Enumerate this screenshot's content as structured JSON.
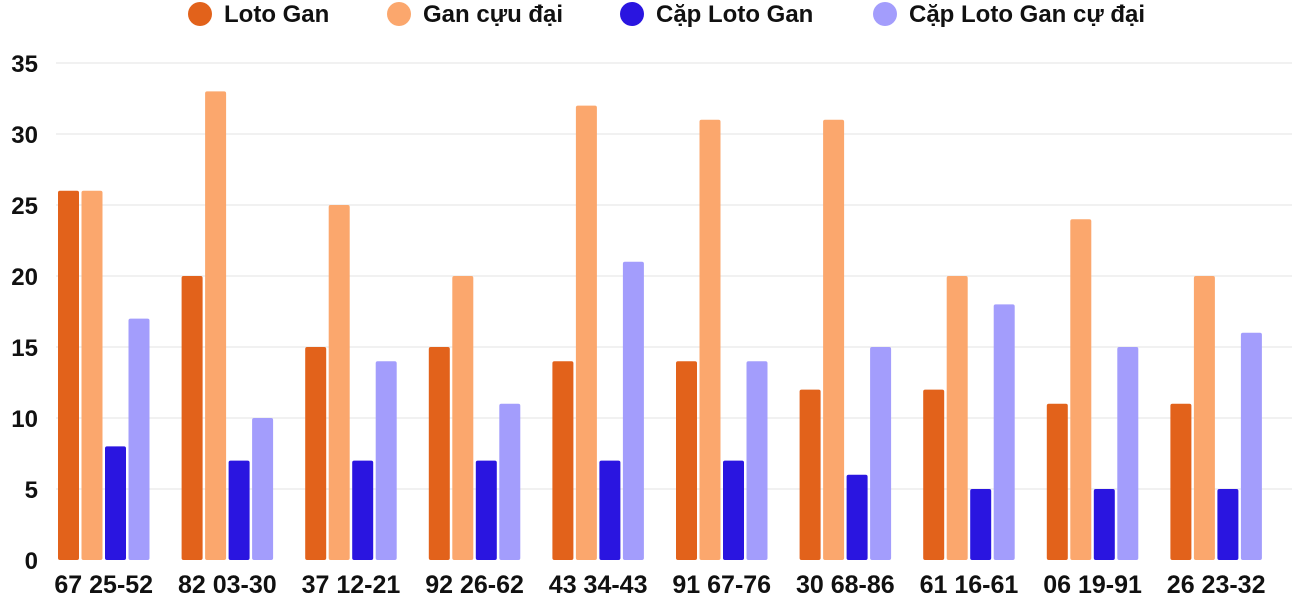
{
  "chart_data": {
    "type": "bar",
    "title": "",
    "xlabel": "",
    "ylabel": "",
    "ylim": [
      0,
      35
    ],
    "yticks": [
      0,
      5,
      10,
      15,
      20,
      25,
      30,
      35
    ],
    "grid": true,
    "legend_position": "top",
    "categories": [
      "67 25-52",
      "82 03-30",
      "37 12-21",
      "92 26-62",
      "43 34-43",
      "91 67-76",
      "30 68-86",
      "61 16-61",
      "06 19-91",
      "26 23-32"
    ],
    "series": [
      {
        "name": "Loto Gan",
        "color": "#e2621b",
        "values": [
          26,
          20,
          15,
          15,
          14,
          14,
          12,
          12,
          11,
          11
        ]
      },
      {
        "name": "Gan cựu đại",
        "color": "#fba76d",
        "values": [
          26,
          33,
          25,
          20,
          32,
          31,
          31,
          20,
          24,
          20
        ]
      },
      {
        "name": "Cặp Loto Gan",
        "color": "#2a15e0",
        "values": [
          8,
          7,
          7,
          7,
          7,
          7,
          6,
          5,
          5,
          5
        ]
      },
      {
        "name": "Cặp Loto Gan cự đại",
        "color": "#a39dfc",
        "values": [
          17,
          10,
          14,
          11,
          21,
          14,
          15,
          18,
          15,
          16
        ]
      }
    ]
  }
}
